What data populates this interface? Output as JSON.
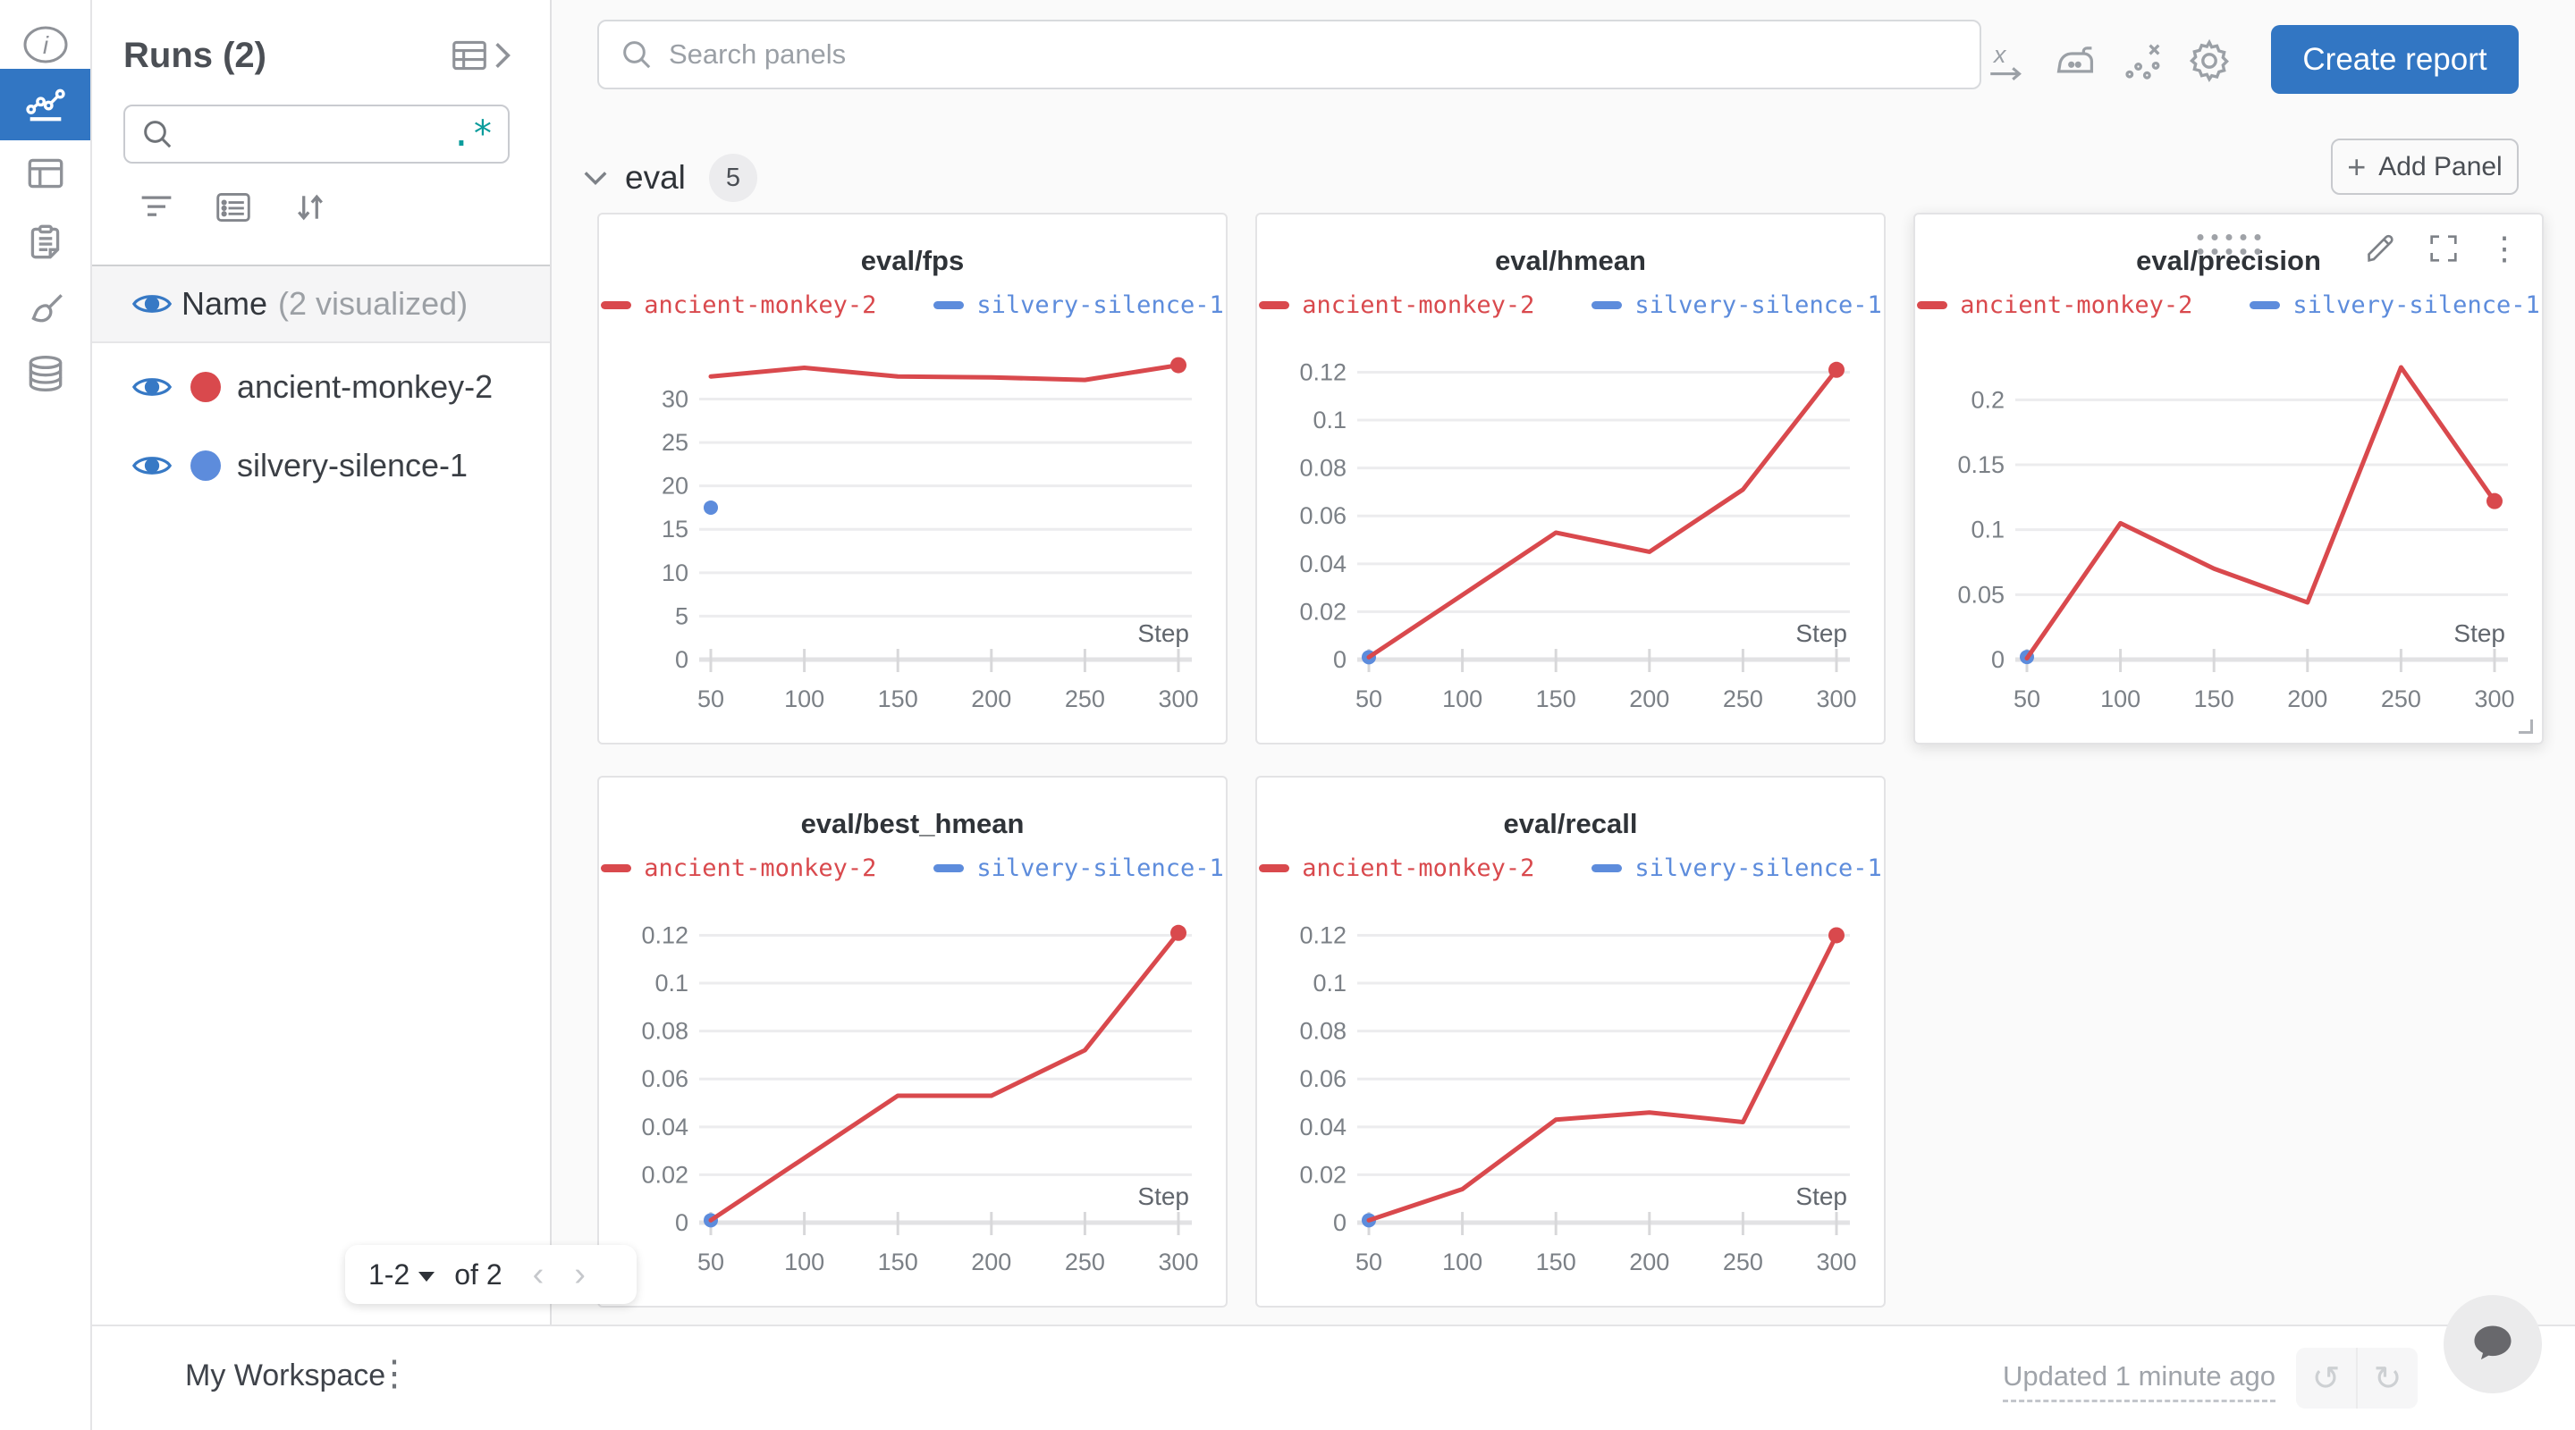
{
  "colors": {
    "accent_blue": "#3276c3",
    "run_red": "#d9494d",
    "run_blue": "#5d8cdc",
    "teal_regex": "#0b9c9c",
    "panel_border": "#e3e3e5",
    "grid_line": "#ececee"
  },
  "nav_rail": {
    "items": [
      {
        "icon": "info-icon",
        "selected": false
      },
      {
        "icon": "line-chart-icon",
        "selected": true
      },
      {
        "icon": "table-icon",
        "selected": false
      },
      {
        "icon": "clipboard-icon",
        "selected": false
      },
      {
        "icon": "brush-icon",
        "selected": false
      },
      {
        "icon": "database-icon",
        "selected": false
      }
    ]
  },
  "sidebar": {
    "title": "Runs (2)",
    "search_value": "",
    "regex_icon": ".*",
    "visualized_row": {
      "label": "Name",
      "note": "(2 visualized)"
    },
    "runs": [
      {
        "name": "ancient-monkey-2",
        "color": "#d9494d"
      },
      {
        "name": "silvery-silence-1",
        "color": "#5d8cdc"
      }
    ],
    "pagination": {
      "range": "1-2",
      "of": "of 2",
      "prev": "‹",
      "next": "›"
    }
  },
  "topbar": {
    "search_placeholder": "Search panels",
    "create_report_label": "Create report"
  },
  "section": {
    "name": "eval",
    "count": "5",
    "add_panel_label": "Add Panel",
    "plus": "+"
  },
  "footer": {
    "workspace": "My Workspace",
    "kebab": "⋮",
    "updated": "Updated 1 minute ago",
    "undo": "↺",
    "redo": "↻"
  },
  "chart_data": [
    {
      "type": "line",
      "title": "eval/fps",
      "xlabel": "Step",
      "x": [
        50,
        100,
        150,
        200,
        250,
        300
      ],
      "yticks": [
        0,
        5,
        10,
        15,
        20,
        25,
        30
      ],
      "ymax": 35.3,
      "legend_position": "top",
      "grid": true,
      "series": [
        {
          "name": "ancient-monkey-2",
          "color": "#d9494d",
          "values": [
            32.6,
            33.6,
            32.6,
            32.5,
            32.2,
            33.9
          ]
        },
        {
          "name": "silvery-silence-1",
          "color": "#5d8cdc",
          "values": [
            17.5,
            null,
            null,
            null,
            null,
            null
          ]
        }
      ]
    },
    {
      "type": "line",
      "title": "eval/hmean",
      "xlabel": "Step",
      "x": [
        50,
        100,
        150,
        200,
        250,
        300
      ],
      "yticks": [
        0,
        0.02,
        0.04,
        0.06,
        0.08,
        0.1,
        0.12
      ],
      "ymax": 0.128,
      "legend_position": "top",
      "grid": true,
      "series": [
        {
          "name": "ancient-monkey-2",
          "color": "#d9494d",
          "values": [
            0.001,
            0.027,
            0.053,
            0.045,
            0.071,
            0.121
          ]
        },
        {
          "name": "silvery-silence-1",
          "color": "#5d8cdc",
          "values": [
            0.001,
            null,
            null,
            null,
            null,
            null
          ]
        }
      ]
    },
    {
      "type": "line",
      "title": "eval/precision",
      "xlabel": "Step",
      "x": [
        50,
        100,
        150,
        200,
        250,
        300
      ],
      "yticks": [
        0,
        0.05,
        0.1,
        0.15,
        0.2
      ],
      "ymax": 0.236,
      "legend_position": "top",
      "grid": true,
      "series": [
        {
          "name": "ancient-monkey-2",
          "color": "#d9494d",
          "values": [
            0.001,
            0.105,
            0.07,
            0.044,
            0.225,
            0.122
          ]
        },
        {
          "name": "silvery-silence-1",
          "color": "#5d8cdc",
          "values": [
            0.002,
            null,
            null,
            null,
            null,
            null
          ]
        }
      ]
    },
    {
      "type": "line",
      "title": "eval/best_hmean",
      "xlabel": "Step",
      "x": [
        50,
        100,
        150,
        200,
        250,
        300
      ],
      "yticks": [
        0,
        0.02,
        0.04,
        0.06,
        0.08,
        0.1,
        0.12
      ],
      "ymax": 0.128,
      "legend_position": "top",
      "grid": true,
      "series": [
        {
          "name": "ancient-monkey-2",
          "color": "#d9494d",
          "values": [
            0.001,
            0.027,
            0.053,
            0.053,
            0.072,
            0.121
          ]
        },
        {
          "name": "silvery-silence-1",
          "color": "#5d8cdc",
          "values": [
            0.001,
            null,
            null,
            null,
            null,
            null
          ]
        }
      ]
    },
    {
      "type": "line",
      "title": "eval/recall",
      "xlabel": "Step",
      "x": [
        50,
        100,
        150,
        200,
        250,
        300
      ],
      "yticks": [
        0,
        0.02,
        0.04,
        0.06,
        0.08,
        0.1,
        0.12
      ],
      "ymax": 0.128,
      "legend_position": "top",
      "grid": true,
      "series": [
        {
          "name": "ancient-monkey-2",
          "color": "#d9494d",
          "values": [
            0.001,
            0.014,
            0.043,
            0.046,
            0.042,
            0.12
          ]
        },
        {
          "name": "silvery-silence-1",
          "color": "#5d8cdc",
          "values": [
            0.001,
            null,
            null,
            null,
            null,
            null
          ]
        }
      ]
    }
  ]
}
